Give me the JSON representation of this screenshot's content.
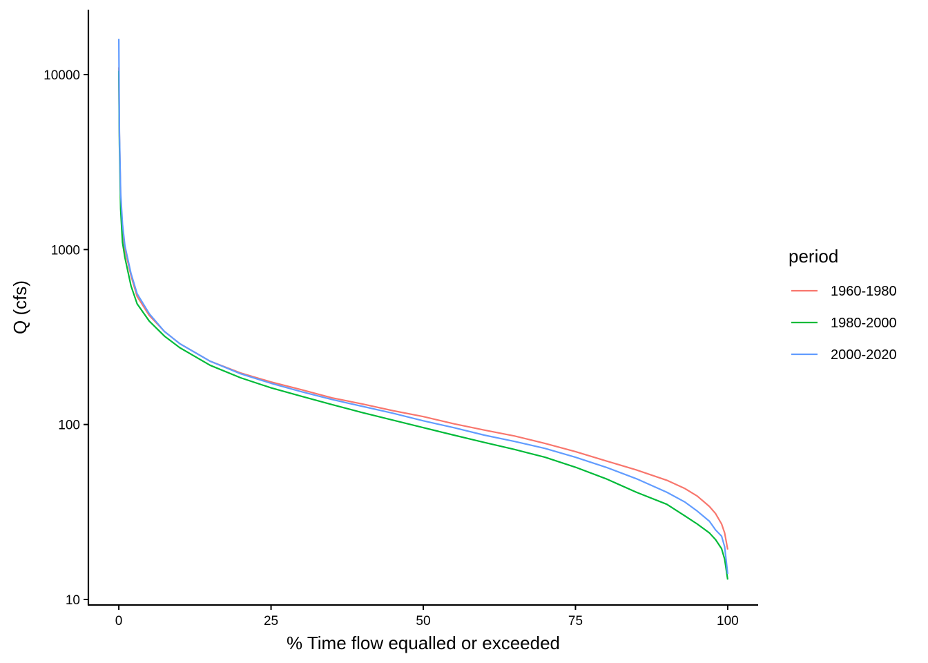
{
  "chart_data": {
    "type": "line",
    "title": "",
    "xlabel": "% Time flow equalled or exceeded",
    "ylabel": "Q (cfs)",
    "xlim": [
      -5,
      105
    ],
    "ylim": [
      9.3,
      23500
    ],
    "y_scale": "log10",
    "x_ticks": [
      0,
      25,
      50,
      75,
      100
    ],
    "x_tick_labels": [
      "0",
      "25",
      "50",
      "75",
      "100"
    ],
    "y_ticks": [
      10,
      100,
      1000,
      10000
    ],
    "y_tick_labels": [
      "10",
      "100",
      "1000",
      "10000"
    ],
    "grid": false,
    "legend": {
      "title": "period",
      "position": "right"
    },
    "series": [
      {
        "name": "1960-1980",
        "color": "#F8766D",
        "x": [
          0,
          0.1,
          0.3,
          0.6,
          1,
          2,
          3,
          5,
          7.5,
          10,
          15,
          20,
          25,
          30,
          35,
          40,
          45,
          50,
          55,
          60,
          65,
          70,
          75,
          80,
          85,
          90,
          93,
          95,
          97,
          98,
          99,
          99.5,
          100
        ],
        "y": [
          11000,
          4500,
          2000,
          1300,
          1000,
          710,
          540,
          420,
          340,
          290,
          230,
          197,
          175,
          158,
          142,
          131,
          120,
          111,
          101,
          93,
          86,
          78,
          70,
          62,
          55,
          48,
          43,
          39,
          34,
          31,
          27,
          24,
          19.3
        ]
      },
      {
        "name": "1980-2000",
        "color": "#00BA38",
        "x": [
          0,
          0.1,
          0.3,
          0.6,
          1,
          2,
          3,
          5,
          7.5,
          10,
          15,
          20,
          25,
          30,
          35,
          40,
          45,
          50,
          55,
          60,
          65,
          70,
          75,
          80,
          85,
          90,
          93,
          95,
          97,
          98,
          99,
          99.5,
          100
        ],
        "y": [
          10500,
          4000,
          1700,
          1100,
          900,
          620,
          490,
          390,
          320,
          275,
          218,
          185,
          162,
          145,
          130,
          117,
          106,
          96,
          87,
          79,
          72,
          65,
          57,
          49,
          41,
          35,
          30,
          27,
          24,
          22,
          19.5,
          17,
          13
        ]
      },
      {
        "name": "2000-2020",
        "color": "#619CFF",
        "x": [
          0,
          0.1,
          0.3,
          0.6,
          1,
          2,
          3,
          5,
          7.5,
          10,
          15,
          20,
          25,
          30,
          35,
          40,
          45,
          50,
          55,
          60,
          65,
          70,
          75,
          80,
          85,
          90,
          93,
          95,
          97,
          98,
          99,
          99.5,
          100
        ],
        "y": [
          16000,
          4700,
          2100,
          1400,
          1050,
          730,
          560,
          430,
          340,
          290,
          230,
          195,
          172,
          154,
          139,
          127,
          116,
          105,
          96,
          87,
          80,
          73,
          65,
          57,
          49,
          41,
          36,
          32,
          28,
          25,
          23,
          20,
          14
        ]
      }
    ]
  }
}
